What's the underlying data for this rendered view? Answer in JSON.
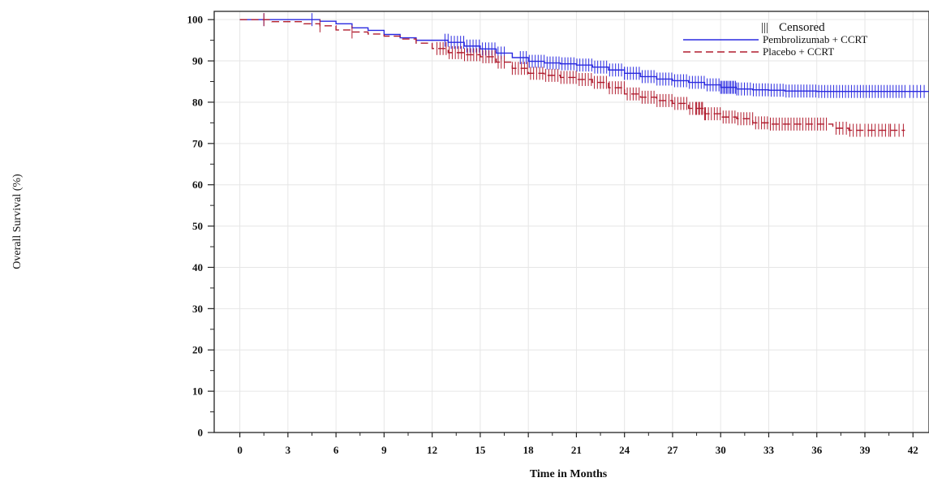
{
  "chart_data": {
    "type": "line",
    "title": "",
    "xlabel": "Time in Months",
    "ylabel": "Overall Survival (%)",
    "xlim": [
      -1.6,
      43
    ],
    "ylim": [
      0,
      102
    ],
    "x_ticks": [
      "0",
      "3",
      "6",
      "9",
      "12",
      "15",
      "18",
      "21",
      "24",
      "27",
      "30",
      "33",
      "36",
      "39",
      "42"
    ],
    "y_ticks": [
      "0",
      "10",
      "20",
      "30",
      "40",
      "50",
      "60",
      "70",
      "80",
      "90",
      "100"
    ],
    "grid": true,
    "legend": {
      "position": "top-right",
      "censored_label": "Censored",
      "censored_symbol": "|||"
    },
    "series": [
      {
        "name": "Pembrolizumab + CCRT",
        "color": "#2a2ae0",
        "dash": "solid",
        "points": [
          [
            0,
            100
          ],
          [
            4,
            100
          ],
          [
            5,
            99.6
          ],
          [
            6,
            99
          ],
          [
            7,
            98
          ],
          [
            8,
            97.4
          ],
          [
            9,
            96.4
          ],
          [
            10,
            95.6
          ],
          [
            11,
            95
          ],
          [
            12,
            95
          ],
          [
            13,
            94.5
          ],
          [
            14,
            93.6
          ],
          [
            15,
            92.9
          ],
          [
            16,
            91.9
          ],
          [
            17,
            90.8
          ],
          [
            18,
            89.9
          ],
          [
            19,
            89.5
          ],
          [
            20,
            89.3
          ],
          [
            21,
            89
          ],
          [
            22,
            88.5
          ],
          [
            23,
            87.8
          ],
          [
            24,
            87
          ],
          [
            25,
            86.2
          ],
          [
            26,
            85.6
          ],
          [
            27,
            85.2
          ],
          [
            28,
            84.8
          ],
          [
            29,
            84.2
          ],
          [
            30,
            83.6
          ],
          [
            31,
            83.2
          ],
          [
            32,
            83
          ],
          [
            33,
            82.9
          ],
          [
            34,
            82.7
          ],
          [
            35,
            82.7
          ],
          [
            36,
            82.6
          ],
          [
            43,
            82.6
          ]
        ],
        "censor_ranges": [
          [
            1.5,
            1.5
          ],
          [
            4.5,
            4.5
          ],
          [
            12.8,
            16.5
          ],
          [
            17.5,
            24
          ],
          [
            24,
            31
          ],
          [
            30,
            41.5
          ],
          [
            41.8,
            42.7
          ]
        ]
      },
      {
        "name": "Placebo + CCRT",
        "color": "#b01c2e",
        "dash": "dashed",
        "points": [
          [
            0,
            100
          ],
          [
            2,
            99.5
          ],
          [
            4,
            99
          ],
          [
            5,
            98.5
          ],
          [
            6,
            97.5
          ],
          [
            7,
            97
          ],
          [
            8,
            96.5
          ],
          [
            9,
            96
          ],
          [
            10,
            95.3
          ],
          [
            11,
            94.3
          ],
          [
            12,
            93
          ],
          [
            13,
            92
          ],
          [
            14,
            91.5
          ],
          [
            15,
            91
          ],
          [
            16,
            89.7
          ],
          [
            17,
            88.2
          ],
          [
            18,
            87
          ],
          [
            19,
            86.5
          ],
          [
            20,
            86
          ],
          [
            21,
            85.5
          ],
          [
            22,
            84.8
          ],
          [
            23,
            83.5
          ],
          [
            24,
            82
          ],
          [
            25,
            81.2
          ],
          [
            26,
            80.4
          ],
          [
            27,
            79.7
          ],
          [
            28,
            78.5
          ],
          [
            29,
            77.2
          ],
          [
            30,
            76.4
          ],
          [
            31,
            76
          ],
          [
            32,
            75
          ],
          [
            33,
            74.7
          ],
          [
            34,
            74.7
          ],
          [
            35,
            74.7
          ],
          [
            36,
            74.7
          ],
          [
            37,
            73.7
          ],
          [
            38,
            73.2
          ],
          [
            41.5,
            73.2
          ]
        ],
        "censor_ranges": [
          [
            1.5,
            1.5
          ],
          [
            5,
            5
          ],
          [
            7,
            7
          ],
          [
            12.3,
            16.5
          ],
          [
            17,
            22.5
          ],
          [
            22.5,
            29
          ],
          [
            28.5,
            36.6
          ],
          [
            37.2,
            38.7
          ],
          [
            39,
            40.5
          ],
          [
            40.6,
            41.4
          ]
        ]
      }
    ]
  }
}
